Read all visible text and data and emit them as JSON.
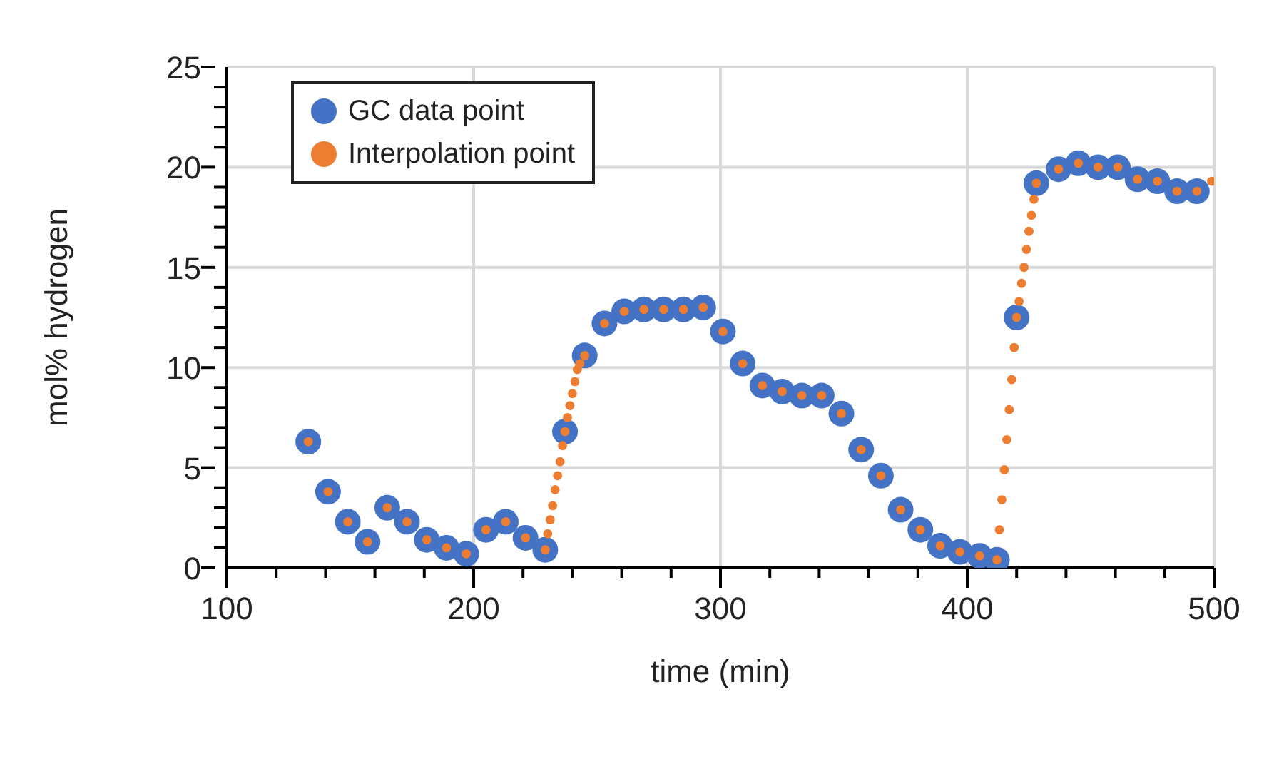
{
  "chart_data": {
    "type": "scatter",
    "xlabel": "time (min)",
    "ylabel": "mol% hydrogen",
    "xlim": [
      100,
      500
    ],
    "ylim": [
      0,
      25
    ],
    "xticks": [
      100,
      {
        "value": 120,
        "label": null
      },
      {
        "value": 140,
        "label": null
      },
      {
        "value": 160,
        "label": null
      },
      {
        "value": 180,
        "label": null
      },
      200,
      {
        "value": 220,
        "label": null
      },
      {
        "value": 240,
        "label": null
      },
      {
        "value": 260,
        "label": null
      },
      {
        "value": 280,
        "label": null
      },
      300,
      {
        "value": 320,
        "label": null
      },
      {
        "value": 340,
        "label": null
      },
      {
        "value": 360,
        "label": null
      },
      {
        "value": 380,
        "label": null
      },
      400,
      {
        "value": 420,
        "label": null
      },
      {
        "value": 440,
        "label": null
      },
      {
        "value": 460,
        "label": null
      },
      {
        "value": 480,
        "label": null
      },
      500
    ],
    "yticks": [
      0,
      {
        "value": 1,
        "label": null
      },
      {
        "value": 2,
        "label": null
      },
      {
        "value": 3,
        "label": null
      },
      {
        "value": 4,
        "label": null
      },
      5,
      {
        "value": 6,
        "label": null
      },
      {
        "value": 7,
        "label": null
      },
      {
        "value": 8,
        "label": null
      },
      {
        "value": 9,
        "label": null
      },
      10,
      {
        "value": 11,
        "label": null
      },
      {
        "value": 12,
        "label": null
      },
      {
        "value": 13,
        "label": null
      },
      {
        "value": 14,
        "label": null
      },
      15,
      {
        "value": 16,
        "label": null
      },
      {
        "value": 17,
        "label": null
      },
      {
        "value": 18,
        "label": null
      },
      {
        "value": 19,
        "label": null
      },
      20,
      {
        "value": 21,
        "label": null
      },
      {
        "value": 22,
        "label": null
      },
      {
        "value": 23,
        "label": null
      },
      {
        "value": 24,
        "label": null
      },
      25
    ],
    "grid": true,
    "legend": "top left",
    "marker": "circle",
    "series": [
      {
        "name": "GC data point",
        "color": "#4472c4",
        "x": [
          133,
          141,
          149,
          157,
          165,
          173,
          181,
          189,
          197,
          205,
          213,
          221,
          229,
          237,
          245,
          253,
          261,
          269,
          277,
          285,
          293,
          301,
          309,
          317,
          325,
          333,
          341,
          349,
          357,
          365,
          373,
          381,
          389,
          397,
          405,
          412,
          420,
          428,
          437,
          445,
          453,
          461,
          469,
          477,
          485,
          493
        ],
        "values": [
          6.3,
          3.8,
          2.3,
          1.3,
          3.0,
          2.3,
          1.4,
          1.0,
          0.7,
          1.9,
          2.3,
          1.5,
          0.9,
          6.8,
          10.6,
          12.2,
          12.8,
          12.9,
          12.9,
          12.9,
          13.0,
          11.8,
          10.2,
          9.1,
          8.8,
          8.6,
          8.6,
          7.7,
          5.9,
          4.6,
          2.9,
          1.9,
          1.1,
          0.8,
          0.6,
          0.4,
          12.5,
          19.2,
          19.9,
          20.2,
          20.0,
          20.0,
          19.4,
          19.3,
          18.8,
          18.8
        ]
      },
      {
        "name": "Interpolation point",
        "color": "#ed7d31",
        "x": [
          133,
          141,
          149,
          157,
          165,
          173,
          181,
          189,
          197,
          205,
          213,
          221,
          229,
          230,
          231,
          232,
          233,
          234,
          235,
          236,
          237,
          238,
          239,
          240,
          241,
          242,
          243,
          245,
          253,
          261,
          269,
          277,
          285,
          293,
          301,
          309,
          317,
          325,
          333,
          341,
          349,
          357,
          365,
          373,
          381,
          389,
          397,
          405,
          412,
          413,
          414,
          415,
          416,
          417,
          418,
          419,
          420,
          421,
          422,
          423,
          424,
          425,
          426,
          427,
          428,
          437,
          445,
          453,
          461,
          469,
          477,
          485,
          493,
          499
        ],
        "values": [
          6.3,
          3.8,
          2.3,
          1.3,
          3.0,
          2.3,
          1.4,
          1.0,
          0.7,
          1.9,
          2.3,
          1.5,
          0.9,
          1.7,
          2.4,
          3.1,
          3.9,
          4.6,
          5.3,
          6.1,
          6.8,
          7.5,
          8.1,
          8.7,
          9.3,
          9.9,
          10.2,
          10.6,
          12.2,
          12.8,
          12.9,
          12.9,
          12.9,
          13.0,
          11.8,
          10.2,
          9.1,
          8.8,
          8.6,
          8.6,
          7.7,
          5.9,
          4.6,
          2.9,
          1.9,
          1.1,
          0.8,
          0.6,
          0.4,
          1.9,
          3.4,
          4.9,
          6.4,
          7.9,
          9.4,
          11.0,
          12.5,
          13.3,
          14.2,
          15.0,
          15.9,
          16.8,
          17.6,
          18.4,
          19.2,
          19.9,
          20.2,
          20.0,
          20.0,
          19.4,
          19.3,
          18.8,
          18.8,
          19.3
        ]
      }
    ]
  }
}
